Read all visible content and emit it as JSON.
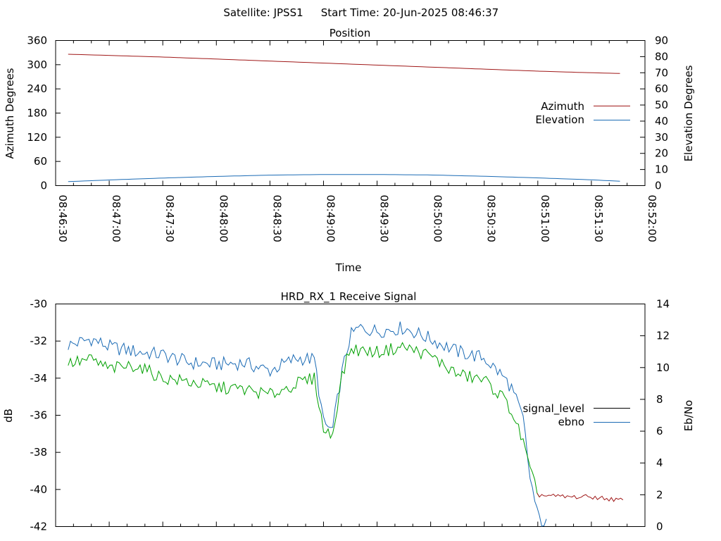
{
  "header": {
    "satellite": "Satellite: JPSS1",
    "start_time": "Start Time: 20-Jun-2025 08:46:37"
  },
  "colors": {
    "azimuth": "#a01818",
    "elevation": "#1b6bb5",
    "signal_level": "#000000",
    "ebno": "#1b6bb5",
    "signal_drawn_green": "#00a000",
    "signal_drawn_red": "#a01818",
    "ebno_drawn": "#1b6bb5",
    "axis": "#000000"
  },
  "chart_data": [
    {
      "type": "line",
      "title": "Position",
      "xlabel": "Time",
      "ylabel": "Azimuth Degrees",
      "y2label": "Elevation Degrees",
      "xlim": [
        "08:46:30",
        "08:52:00"
      ],
      "ylim": [
        0,
        360
      ],
      "y2lim": [
        0,
        90
      ],
      "yticks": [
        "0",
        "60",
        "120",
        "180",
        "240",
        "300",
        "360"
      ],
      "y2ticks": [
        "0",
        "10",
        "20",
        "30",
        "40",
        "50",
        "60",
        "70",
        "80",
        "90"
      ],
      "xticks": [
        "08:46:30",
        "08:47:00",
        "08:47:30",
        "08:48:00",
        "08:48:30",
        "08:49:00",
        "08:49:30",
        "08:50:00",
        "08:50:30",
        "08:51:00",
        "08:51:30",
        "08:52:00"
      ],
      "legend_position": "right",
      "series": [
        {
          "name": "Azimuth",
          "axis": "left",
          "x": [
            "08:46:37",
            "08:47:00",
            "08:47:30",
            "08:48:00",
            "08:48:30",
            "08:49:00",
            "08:49:30",
            "08:50:00",
            "08:50:30",
            "08:51:00",
            "08:51:30",
            "08:51:48"
          ],
          "values": [
            326,
            323,
            319,
            314,
            309,
            304,
            299,
            294,
            289,
            284,
            280,
            278
          ]
        },
        {
          "name": "Elevation",
          "axis": "right",
          "x": [
            "08:46:37",
            "08:47:00",
            "08:47:30",
            "08:48:00",
            "08:48:30",
            "08:49:00",
            "08:49:30",
            "08:50:00",
            "08:50:30",
            "08:51:00",
            "08:51:30",
            "08:51:48"
          ],
          "values": [
            2.5,
            3.5,
            4.7,
            5.7,
            6.5,
            6.9,
            6.9,
            6.6,
            5.8,
            4.8,
            3.6,
            2.6
          ]
        }
      ]
    },
    {
      "type": "line",
      "title": "HRD_RX_1 Receive Signal",
      "ylabel": "dB",
      "y2label": "Eb/No",
      "xlim": [
        "08:46:30",
        "08:52:00"
      ],
      "ylim": [
        -42,
        -30
      ],
      "y2lim": [
        0,
        14
      ],
      "yticks": [
        "-30",
        "-32",
        "-34",
        "-36",
        "-38",
        "-40",
        "-42"
      ],
      "y2ticks": [
        "0",
        "2",
        "4",
        "6",
        "8",
        "10",
        "12",
        "14"
      ],
      "legend_position": "right",
      "series": [
        {
          "name": "signal_level",
          "axis": "left",
          "x": [
            "08:46:37",
            "08:46:50",
            "08:47:00",
            "08:47:15",
            "08:47:30",
            "08:47:45",
            "08:48:00",
            "08:48:15",
            "08:48:30",
            "08:48:45",
            "08:48:55",
            "08:49:00",
            "08:49:05",
            "08:49:10",
            "08:49:15",
            "08:49:20",
            "08:49:30",
            "08:49:45",
            "08:50:00",
            "08:50:15",
            "08:50:30",
            "08:50:40",
            "08:50:45",
            "08:50:52",
            "08:50:55",
            "08:51:00",
            "08:51:15",
            "08:51:30",
            "08:51:48"
          ],
          "values": [
            -33.2,
            -33.0,
            -33.5,
            -33.3,
            -34.0,
            -34.2,
            -34.5,
            -34.6,
            -34.9,
            -34.3,
            -34.0,
            -36.8,
            -37.1,
            -34.0,
            -32.4,
            -32.5,
            -32.6,
            -32.3,
            -32.8,
            -33.8,
            -34.1,
            -35.0,
            -35.7,
            -37.5,
            -38.8,
            -40.3,
            -40.4,
            -40.4,
            -40.6
          ]
        },
        {
          "name": "ebno",
          "axis": "right",
          "x": [
            "08:46:37",
            "08:46:50",
            "08:47:00",
            "08:47:15",
            "08:47:30",
            "08:47:45",
            "08:48:00",
            "08:48:15",
            "08:48:30",
            "08:48:45",
            "08:48:55",
            "08:49:00",
            "08:49:05",
            "08:49:10",
            "08:49:15",
            "08:49:20",
            "08:49:30",
            "08:49:45",
            "08:50:00",
            "08:50:15",
            "08:50:30",
            "08:50:40",
            "08:50:45",
            "08:50:52",
            "08:50:55",
            "08:51:00",
            "08:51:05"
          ],
          "values": [
            11.4,
            11.8,
            11.3,
            11.0,
            10.8,
            10.3,
            10.2,
            10.3,
            9.8,
            10.6,
            10.5,
            6.5,
            6.0,
            9.5,
            12.0,
            12.5,
            12.3,
            12.5,
            11.8,
            11.0,
            10.6,
            9.5,
            8.8,
            6.7,
            3.5,
            0.6,
            0.1
          ]
        }
      ]
    }
  ]
}
